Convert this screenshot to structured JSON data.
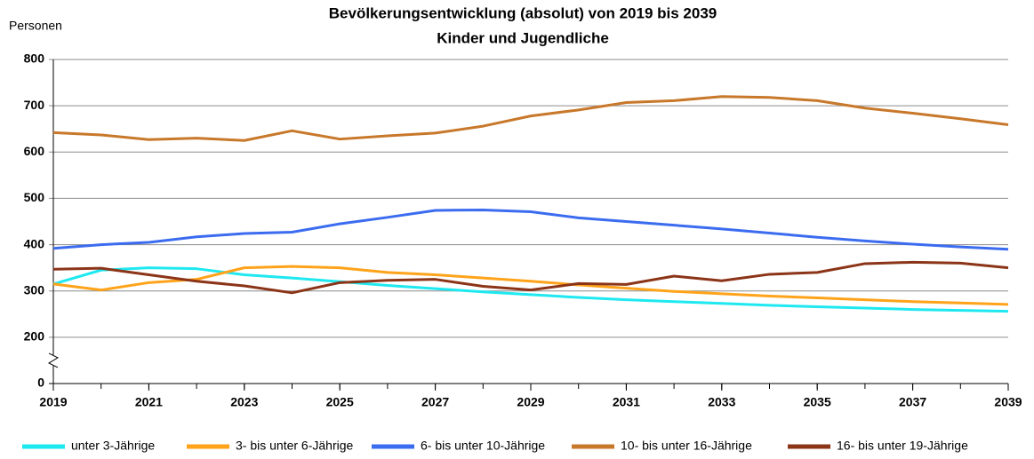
{
  "chart_data": {
    "type": "line",
    "title": "Bevölkerungsentwicklung (absolut) von 2019 bis 2039",
    "subtitle": "Kinder und Jugendliche",
    "y_label": "Personen",
    "x": [
      2019,
      2020,
      2021,
      2022,
      2023,
      2024,
      2025,
      2026,
      2027,
      2028,
      2029,
      2030,
      2031,
      2032,
      2033,
      2034,
      2035,
      2036,
      2037,
      2038,
      2039
    ],
    "xlim": [
      2019,
      2039
    ],
    "xticks": [
      2019,
      2021,
      2023,
      2025,
      2027,
      2029,
      2031,
      2033,
      2035,
      2037,
      2039
    ],
    "ylim": [
      0,
      800
    ],
    "yticks": [
      0,
      200,
      300,
      400,
      500,
      600,
      700,
      800
    ],
    "y_axis_break": [
      0,
      200
    ],
    "grid": true,
    "legend": "bottom",
    "series": [
      {
        "name": "unter 3-Jährige",
        "color": "#1ee8f0",
        "values": [
          315,
          345,
          350,
          348,
          335,
          328,
          320,
          312,
          305,
          298,
          292,
          286,
          281,
          277,
          273,
          269,
          266,
          263,
          260,
          258,
          256
        ]
      },
      {
        "name": "3- bis unter 6-Jährige",
        "color": "#ffa31a",
        "values": [
          315,
          302,
          318,
          325,
          350,
          353,
          350,
          340,
          335,
          328,
          321,
          313,
          306,
          299,
          294,
          289,
          285,
          281,
          277,
          274,
          271
        ]
      },
      {
        "name": "6- bis unter 10-Jährige",
        "color": "#3b6cf0",
        "values": [
          392,
          400,
          405,
          417,
          424,
          427,
          445,
          459,
          474,
          475,
          471,
          458,
          450,
          442,
          434,
          425,
          416,
          408,
          401,
          395,
          390
        ]
      },
      {
        "name": "10- bis unter 16-Jährige",
        "color": "#c8782a",
        "values": [
          642,
          637,
          627,
          630,
          625,
          646,
          628,
          635,
          641,
          656,
          678,
          691,
          707,
          711,
          720,
          718,
          711,
          695,
          684,
          672,
          659
        ]
      },
      {
        "name": "16- bis unter 19-Jährige",
        "color": "#8b3417",
        "values": [
          347,
          349,
          335,
          321,
          311,
          296,
          318,
          323,
          325,
          310,
          302,
          316,
          314,
          332,
          322,
          336,
          340,
          359,
          362,
          360,
          350
        ]
      }
    ]
  }
}
